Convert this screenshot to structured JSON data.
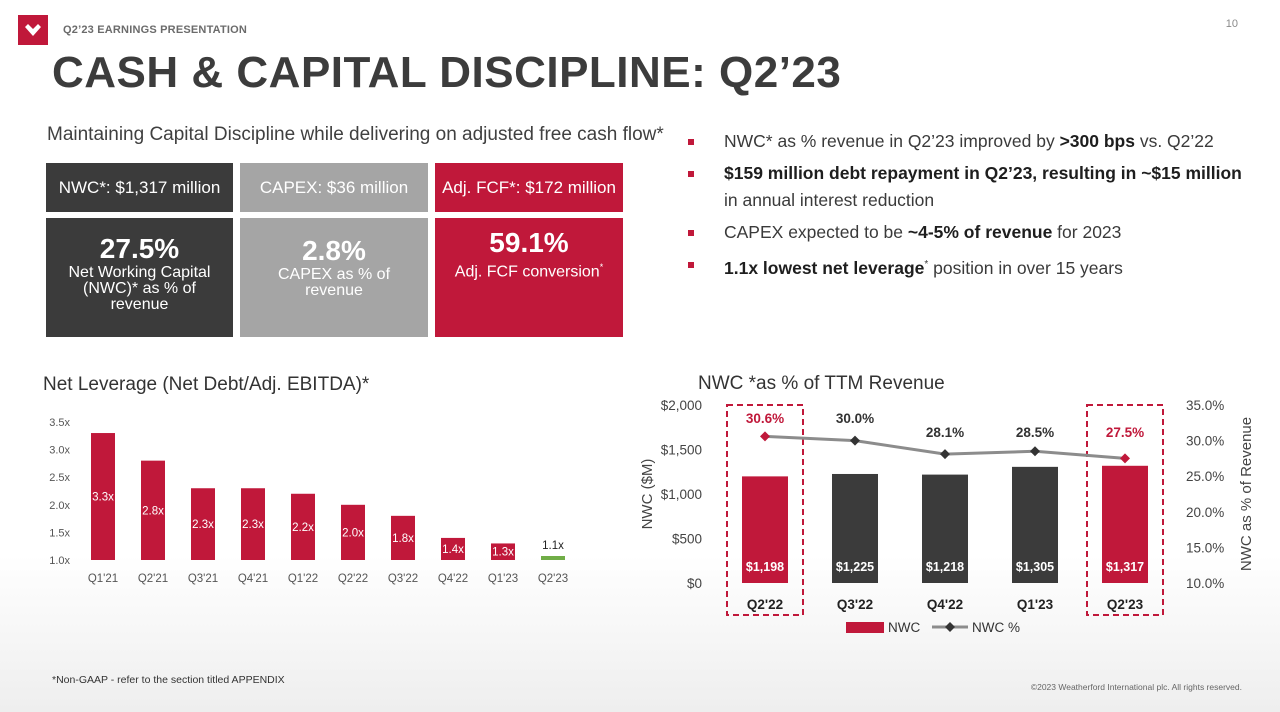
{
  "header": {
    "label": "Q2’23 EARNINGS PRESENTATION",
    "page_number": "10",
    "title": "CASH & CAPITAL DISCIPLINE: Q2’23"
  },
  "subtitle": "Maintaining Capital Discipline while delivering on adjusted free cash flow*",
  "boxes": [
    {
      "head": "NWC*: $1,317 million",
      "big": "27.5%",
      "desc": "Net Working Capital (NWC)* as % of revenue"
    },
    {
      "head": "CAPEX: $36 million",
      "big": "2.8%",
      "desc": "CAPEX as % of revenue"
    },
    {
      "head": "Adj. FCF*: $172 million",
      "big": "59.1%",
      "desc": "Adj. FCF conversion",
      "desc_sup": "*"
    }
  ],
  "bullets": [
    {
      "pre": "NWC* as % revenue in Q2’23 improved by ",
      "bold": ">300 bps",
      "post": " vs. Q2’22"
    },
    {
      "pre": "",
      "bold": "$159 million debt repayment in Q2’23, resulting in ~$15 million",
      "post": " in annual interest reduction"
    },
    {
      "pre": "CAPEX expected to be ",
      "bold": "~4-5% of revenue",
      "post": " for 2023"
    },
    {
      "pre": "",
      "bold": "1.1x lowest net leverage",
      "sup": "*",
      "post": " position in over 15 years"
    }
  ],
  "colors": {
    "red": "#c0183a",
    "dark": "#3b3b3b",
    "gray": "#a5a5a5",
    "green": "#70ad47",
    "line": "#8c8c8c"
  },
  "chart_data": [
    {
      "type": "bar",
      "title": "Net Leverage (Net Debt/Adj. EBITDA)*",
      "categories": [
        "Q1'21",
        "Q2'21",
        "Q3'21",
        "Q4'21",
        "Q1'22",
        "Q2'22",
        "Q3'22",
        "Q4'22",
        "Q1'23",
        "Q2'23"
      ],
      "values": [
        3.3,
        2.8,
        2.3,
        2.3,
        2.2,
        2.0,
        1.8,
        1.4,
        1.3,
        1.1
      ],
      "labels": [
        "3.3x",
        "2.8x",
        "2.3x",
        "2.3x",
        "2.2x",
        "2.0x",
        "1.8x",
        "1.4x",
        "1.3x",
        "1.1x"
      ],
      "ylim": [
        1.0,
        3.5
      ],
      "yticks": [
        "1.0x",
        "1.5x",
        "2.0x",
        "2.5x",
        "3.0x",
        "3.5x"
      ],
      "xlabel": "",
      "ylabel": ""
    },
    {
      "type": "bar",
      "title": "NWC *as % of TTM Revenue",
      "categories": [
        "Q2'22",
        "Q3'22",
        "Q4'22",
        "Q1'23",
        "Q2'23"
      ],
      "series": [
        {
          "name": "NWC",
          "type": "bar",
          "values": [
            1198,
            1225,
            1218,
            1305,
            1317
          ],
          "labels": [
            "$1,198",
            "$1,225",
            "$1,218",
            "$1,305",
            "$1,317"
          ]
        },
        {
          "name": "NWC %",
          "type": "line",
          "values": [
            30.6,
            30.0,
            28.1,
            28.5,
            27.5
          ],
          "labels": [
            "30.6%",
            "30.0%",
            "28.1%",
            "28.5%",
            "27.5%"
          ]
        }
      ],
      "ylabel": "NWC ($M)",
      "ylim": [
        0,
        2000
      ],
      "yticks": [
        "$0",
        "$500",
        "$1,000",
        "$1,500",
        "$2,000"
      ],
      "y2label": "NWC as % of Revenue",
      "y2lim": [
        10,
        35
      ],
      "y2ticks": [
        "10.0%",
        "15.0%",
        "20.0%",
        "25.0%",
        "30.0%",
        "35.0%"
      ],
      "highlighted": [
        "Q2'22",
        "Q2'23"
      ],
      "legend": [
        "NWC",
        "NWC %"
      ]
    }
  ],
  "footnote": "*Non-GAAP -  refer to the section titled APPENDIX",
  "copyright": "©2023 Weatherford International plc.  All rights reserved."
}
